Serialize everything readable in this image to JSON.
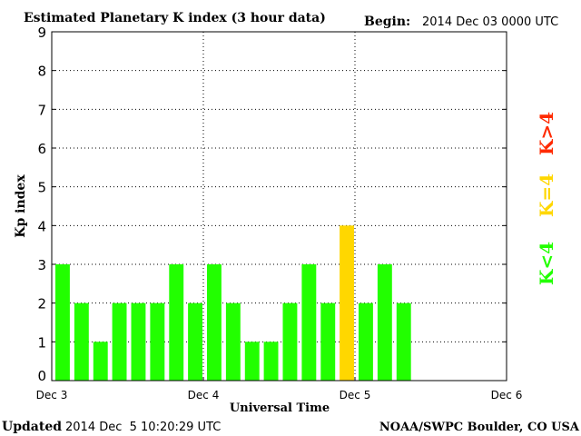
{
  "chart_data": {
    "type": "bar",
    "title": "Estimated Planetary K index (3 hour data)",
    "begin_label": "Begin:",
    "begin_value": "2014 Dec 03 0000 UTC",
    "xlabel": "Universal Time",
    "ylabel": "Kp index",
    "ylim": [
      0,
      9
    ],
    "yticks": [
      "0",
      "1",
      "2",
      "3",
      "4",
      "5",
      "6",
      "7",
      "8",
      "9"
    ],
    "xticks": [
      "Dec 3",
      "Dec 4",
      "Dec 5",
      "Dec 6"
    ],
    "grid": "dotted",
    "values": [
      3,
      2,
      1,
      2,
      2,
      2,
      3,
      2,
      3,
      2,
      1,
      1,
      2,
      3,
      2,
      4,
      2,
      3,
      2
    ],
    "legend": [
      {
        "label": "K>4",
        "color": "#ff2a00"
      },
      {
        "label": "K=4",
        "color": "#ffd700"
      },
      {
        "label": "K<4",
        "color": "#22ff00"
      }
    ],
    "colors": {
      "below4": "#22ff00",
      "equal4": "#ffd700",
      "above4": "#ff2a00"
    }
  },
  "footer": {
    "updated_label": "Updated",
    "updated_value": "2014 Dec  5 10:20:29 UTC",
    "credit": "NOAA/SWPC Boulder, CO USA"
  }
}
